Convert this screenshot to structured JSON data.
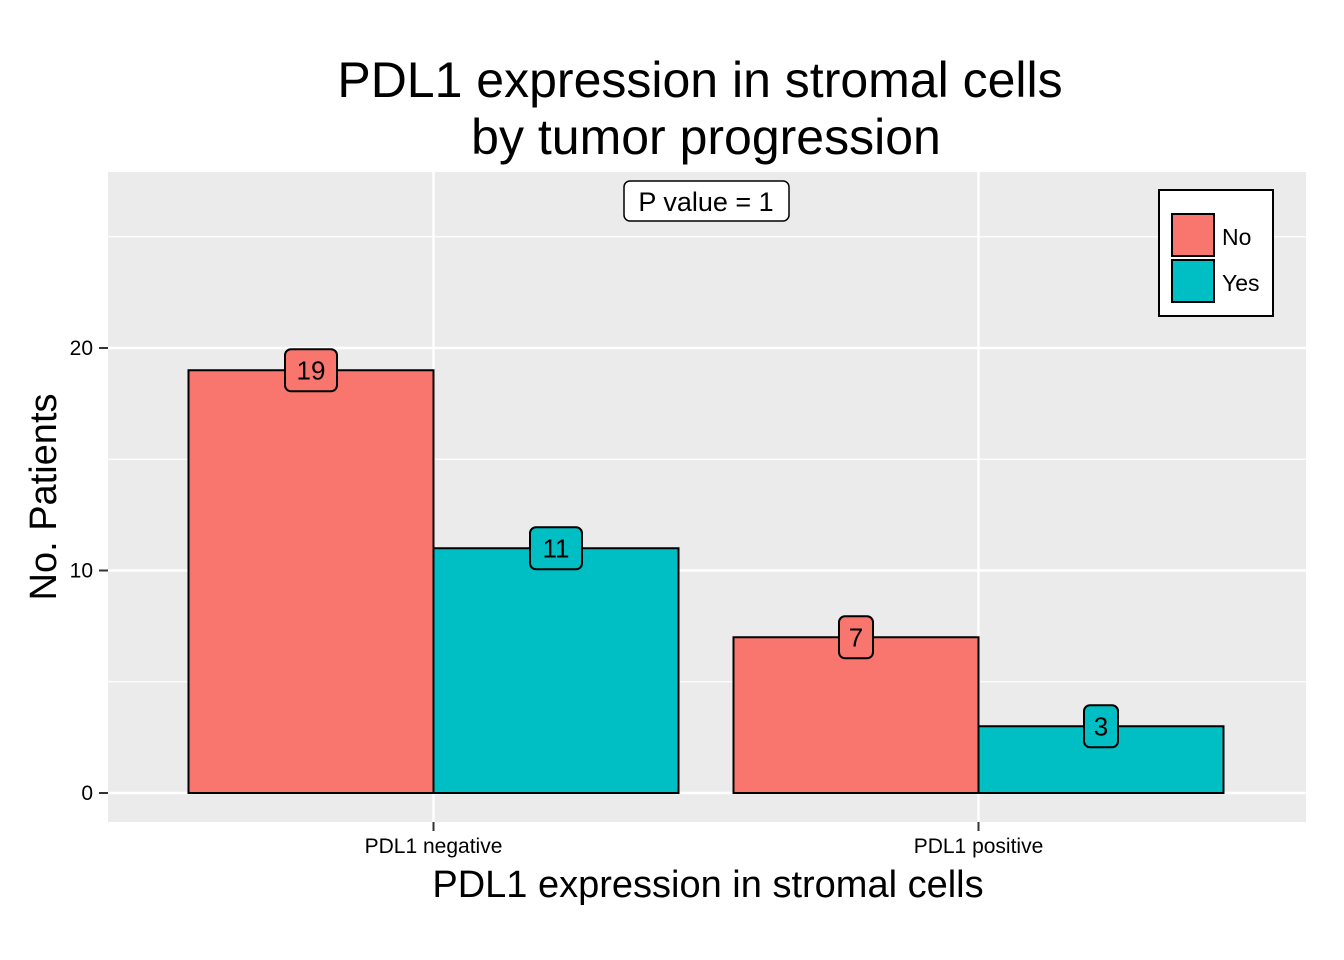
{
  "chart_data": {
    "type": "bar",
    "title_lines": [
      "PDL1 expression in stromal cells",
      "by tumor progression"
    ],
    "xlabel": "PDL1 expression in stromal cells",
    "ylabel": "No. Patients",
    "categories": [
      "PDL1 negative",
      "PDL1 positive"
    ],
    "series": [
      {
        "name": "No",
        "color": "#F8766D",
        "values": [
          19,
          7
        ]
      },
      {
        "name": "Yes",
        "color": "#00BFC4",
        "values": [
          11,
          3
        ]
      }
    ],
    "ylim": [
      0,
      28
    ],
    "yticks": [
      0,
      10,
      20
    ],
    "annotation": "P value = 1",
    "legend_placement": "top-right",
    "grid": true,
    "panel_color": "#EBEBEB"
  }
}
